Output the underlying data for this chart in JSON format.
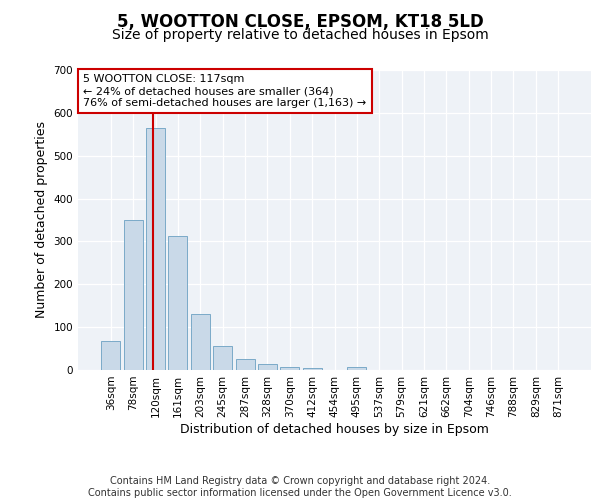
{
  "title": "5, WOOTTON CLOSE, EPSOM, KT18 5LD",
  "subtitle": "Size of property relative to detached houses in Epsom",
  "xlabel": "Distribution of detached houses by size in Epsom",
  "ylabel": "Number of detached properties",
  "bar_labels": [
    "36sqm",
    "78sqm",
    "120sqm",
    "161sqm",
    "203sqm",
    "245sqm",
    "287sqm",
    "328sqm",
    "370sqm",
    "412sqm",
    "454sqm",
    "495sqm",
    "537sqm",
    "579sqm",
    "621sqm",
    "662sqm",
    "704sqm",
    "746sqm",
    "788sqm",
    "829sqm",
    "871sqm"
  ],
  "bar_values": [
    68,
    350,
    565,
    313,
    130,
    57,
    25,
    13,
    6,
    5,
    0,
    8,
    0,
    0,
    0,
    0,
    0,
    0,
    0,
    0,
    0
  ],
  "bar_color": "#c9d9e8",
  "bar_edge_color": "#7aaac8",
  "vline_x": 1.87,
  "vline_color": "#cc0000",
  "annotation_text": "5 WOOTTON CLOSE: 117sqm\n← 24% of detached houses are smaller (364)\n76% of semi-detached houses are larger (1,163) →",
  "annotation_box_color": "#ffffff",
  "annotation_box_edge": "#cc0000",
  "ylim_max": 700,
  "yticks": [
    0,
    100,
    200,
    300,
    400,
    500,
    600,
    700
  ],
  "footer_text": "Contains HM Land Registry data © Crown copyright and database right 2024.\nContains public sector information licensed under the Open Government Licence v3.0.",
  "bg_color": "#eef2f7",
  "title_fontsize": 12,
  "subtitle_fontsize": 10,
  "axis_label_fontsize": 9,
  "tick_fontsize": 7.5,
  "footer_fontsize": 7,
  "ann_fontsize": 8
}
